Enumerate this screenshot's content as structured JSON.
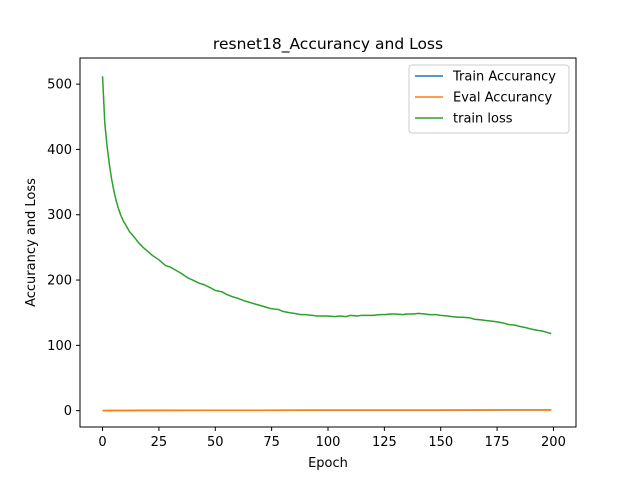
{
  "chart_data": {
    "type": "line",
    "title": "resnet18_Accurancy and Loss",
    "xlabel": "Epoch",
    "ylabel": "Accurancy and Loss",
    "xlim": [
      -10,
      210
    ],
    "ylim": [
      -25,
      540
    ],
    "xticks": [
      0,
      25,
      50,
      75,
      100,
      125,
      150,
      175,
      200
    ],
    "yticks": [
      0,
      100,
      200,
      300,
      400,
      500
    ],
    "grid": false,
    "legend_position": "top-right",
    "series": [
      {
        "name": "Train Accurancy",
        "color": "#1f77b4",
        "x": [
          0,
          5,
          10,
          20,
          50,
          100,
          150,
          199
        ],
        "y": [
          0.1,
          0.2,
          0.3,
          0.4,
          0.6,
          0.8,
          0.9,
          0.95
        ]
      },
      {
        "name": "Eval Accurancy",
        "color": "#ff7f0e",
        "x": [
          0,
          5,
          10,
          20,
          50,
          100,
          150,
          199
        ],
        "y": [
          0.1,
          0.2,
          0.3,
          0.4,
          0.6,
          0.8,
          0.9,
          0.95
        ]
      },
      {
        "name": "train loss",
        "color": "#2ca02c",
        "x": [
          0,
          1,
          2,
          3,
          4,
          5,
          6,
          7,
          8,
          9,
          10,
          12,
          14,
          16,
          18,
          20,
          22,
          25,
          28,
          30,
          33,
          35,
          38,
          40,
          43,
          45,
          48,
          50,
          53,
          55,
          58,
          60,
          63,
          65,
          68,
          70,
          73,
          75,
          78,
          80,
          83,
          85,
          88,
          90,
          93,
          95,
          98,
          100,
          103,
          105,
          108,
          110,
          113,
          115,
          118,
          120,
          123,
          125,
          128,
          130,
          133,
          135,
          138,
          140,
          143,
          145,
          148,
          150,
          153,
          155,
          158,
          160,
          163,
          165,
          168,
          170,
          173,
          175,
          178,
          180,
          183,
          185,
          188,
          190,
          193,
          195,
          197,
          199
        ],
        "y": [
          512,
          440,
          405,
          378,
          355,
          337,
          322,
          310,
          300,
          292,
          286,
          274,
          266,
          257,
          250,
          244,
          238,
          231,
          222,
          220,
          214,
          210,
          203,
          200,
          195,
          193,
          188,
          184,
          182,
          178,
          174,
          172,
          168,
          166,
          163,
          161,
          158,
          156,
          155,
          152,
          150,
          149,
          147,
          147,
          146,
          145,
          145,
          145,
          144,
          145,
          144,
          146,
          145,
          146,
          146,
          146,
          147,
          147,
          148,
          148,
          147,
          148,
          148,
          149,
          148,
          147,
          147,
          146,
          145,
          144,
          143,
          143,
          142,
          140,
          139,
          138,
          137,
          136,
          134,
          132,
          131,
          129,
          127,
          125,
          123,
          122,
          120,
          118
        ]
      }
    ]
  }
}
